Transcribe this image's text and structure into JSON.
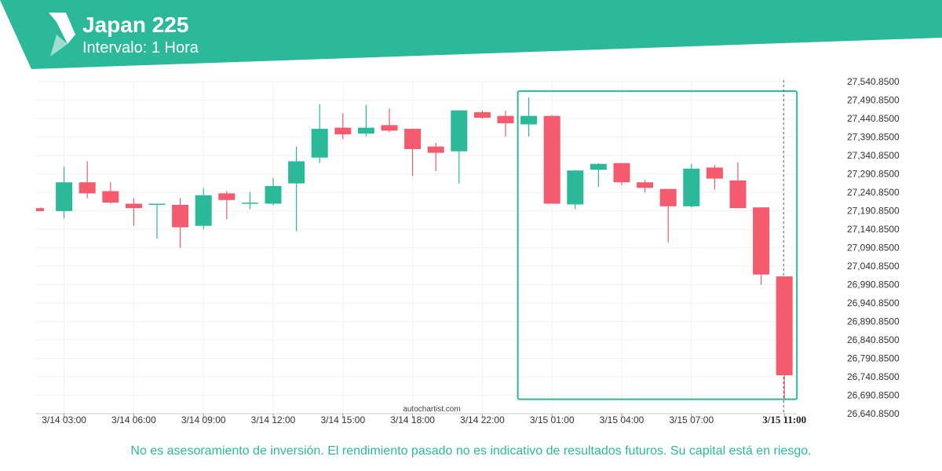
{
  "header": {
    "title": "Japan 225",
    "subtitle": "Intervalo: 1 Hora"
  },
  "watermark": "autochartist.com",
  "disclaimer": "No es asesoramiento de inversión. El rendimiento pasado no es indicativo de resultados futuros. Su capital está en riesgo.",
  "colors": {
    "brand": "#2bb99a",
    "up": "#2bb99a",
    "down": "#f45b6e"
  },
  "chart_data": {
    "type": "candlestick",
    "y_ticks": [
      "27,540.8500",
      "27,490.8500",
      "27,440.8500",
      "27,390.8500",
      "27,340.8500",
      "27,290.8500",
      "27,240.8500",
      "27,190.8500",
      "27,140.8500",
      "27,090.8500",
      "27,040.8500",
      "26,990.8500",
      "26,940.8500",
      "26,890.8500",
      "26,840.8500",
      "26,790.8500",
      "26,740.8500",
      "26,690.8500",
      "26,640.8500"
    ],
    "x_ticks": [
      {
        "label": "3/14 03:00",
        "index": 1
      },
      {
        "label": "3/14 06:00",
        "index": 4
      },
      {
        "label": "3/14 09:00",
        "index": 7
      },
      {
        "label": "3/14 12:00",
        "index": 10
      },
      {
        "label": "3/14 15:00",
        "index": 13
      },
      {
        "label": "3/14 18:00",
        "index": 16
      },
      {
        "label": "3/14 22:00",
        "index": 19
      },
      {
        "label": "3/15 01:00",
        "index": 22
      },
      {
        "label": "3/15 04:00",
        "index": 25
      },
      {
        "label": "3/15 07:00",
        "index": 28
      },
      {
        "label": "3/15 11:00",
        "index": 32,
        "bold": true
      }
    ],
    "ylim": [
      26640.85,
      27540.85
    ],
    "candles": [
      {
        "o": 27198,
        "h": 27200,
        "l": 27189,
        "c": 27190
      },
      {
        "o": 27190,
        "h": 27310,
        "l": 27170,
        "c": 27268
      },
      {
        "o": 27268,
        "h": 27325,
        "l": 27225,
        "c": 27238
      },
      {
        "o": 27244,
        "h": 27268,
        "l": 27210,
        "c": 27213
      },
      {
        "o": 27210,
        "h": 27225,
        "l": 27150,
        "c": 27198
      },
      {
        "o": 27210,
        "h": 27210,
        "l": 27115,
        "c": 27210
      },
      {
        "o": 27207,
        "h": 27225,
        "l": 27090,
        "c": 27146
      },
      {
        "o": 27150,
        "h": 27253,
        "l": 27140,
        "c": 27233
      },
      {
        "o": 27238,
        "h": 27244,
        "l": 27168,
        "c": 27220
      },
      {
        "o": 27213,
        "h": 27242,
        "l": 27195,
        "c": 27213
      },
      {
        "o": 27210,
        "h": 27280,
        "l": 27205,
        "c": 27258
      },
      {
        "o": 27265,
        "h": 27365,
        "l": 27135,
        "c": 27325
      },
      {
        "o": 27335,
        "h": 27480,
        "l": 27320,
        "c": 27413
      },
      {
        "o": 27416,
        "h": 27455,
        "l": 27385,
        "c": 27398
      },
      {
        "o": 27400,
        "h": 27478,
        "l": 27393,
        "c": 27416
      },
      {
        "o": 27423,
        "h": 27468,
        "l": 27403,
        "c": 27408
      },
      {
        "o": 27413,
        "h": 27410,
        "l": 27285,
        "c": 27358
      },
      {
        "o": 27365,
        "h": 27375,
        "l": 27298,
        "c": 27348
      },
      {
        "o": 27352,
        "h": 27463,
        "l": 27265,
        "c": 27463
      },
      {
        "o": 27458,
        "h": 27463,
        "l": 27440,
        "c": 27443
      },
      {
        "o": 27448,
        "h": 27462,
        "l": 27392,
        "c": 27428
      },
      {
        "o": 27425,
        "h": 27498,
        "l": 27392,
        "c": 27448
      },
      {
        "o": 27448,
        "h": 27450,
        "l": 27210,
        "c": 27210
      },
      {
        "o": 27208,
        "h": 27301,
        "l": 27195,
        "c": 27300
      },
      {
        "o": 27302,
        "h": 27320,
        "l": 27255,
        "c": 27318
      },
      {
        "o": 27320,
        "h": 27320,
        "l": 27260,
        "c": 27268
      },
      {
        "o": 27268,
        "h": 27275,
        "l": 27240,
        "c": 27253
      },
      {
        "o": 27250,
        "h": 27250,
        "l": 27105,
        "c": 27203
      },
      {
        "o": 27203,
        "h": 27318,
        "l": 27200,
        "c": 27305
      },
      {
        "o": 27308,
        "h": 27315,
        "l": 27248,
        "c": 27278
      },
      {
        "o": 27273,
        "h": 27322,
        "l": 27198,
        "c": 27198
      },
      {
        "o": 27200,
        "h": 27200,
        "l": 26990,
        "c": 27018
      },
      {
        "o": 27013,
        "h": 27013,
        "l": 26680,
        "c": 26745
      }
    ],
    "highlight_box": {
      "from_index": 21,
      "to_index": 32,
      "top_value": 27515,
      "bottom_value": 26680
    },
    "marker_index": 32
  }
}
